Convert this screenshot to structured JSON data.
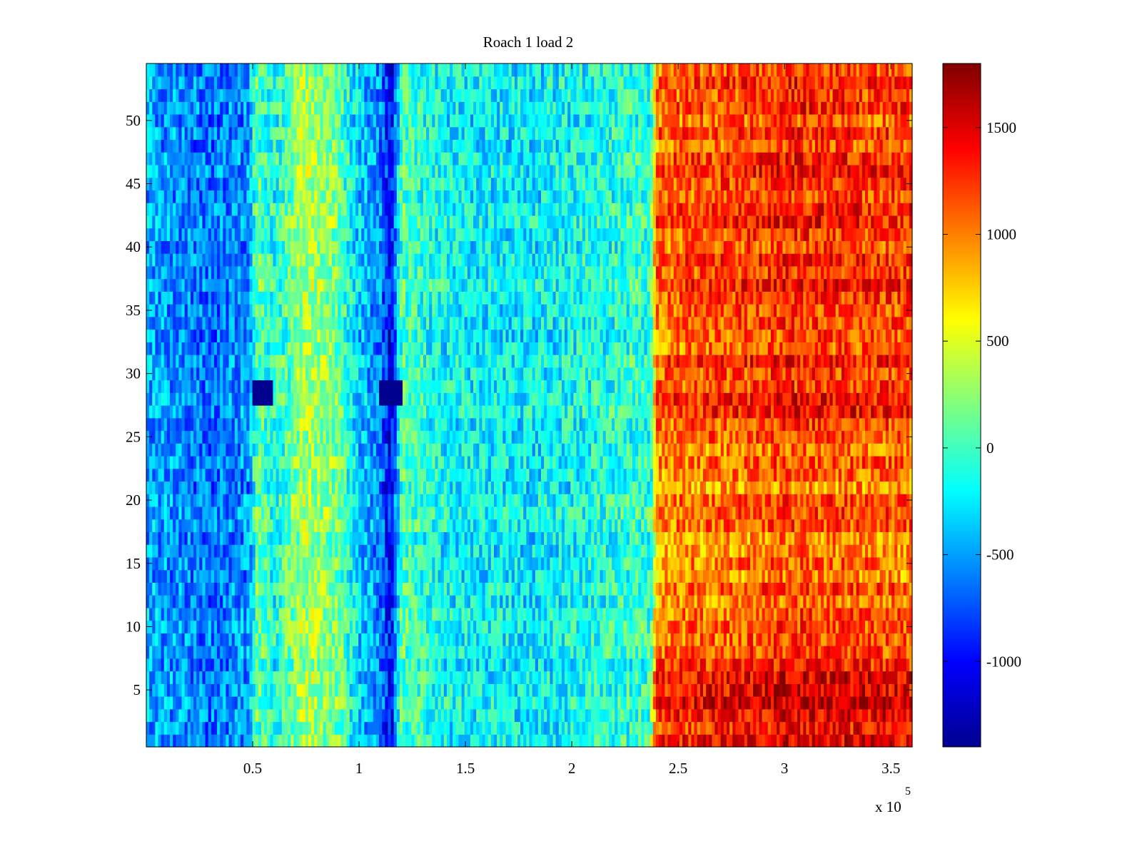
{
  "chart_data": {
    "type": "heatmap",
    "title": "Roach 1 load 2",
    "xlabel": "",
    "ylabel": "",
    "x_multiplier_label": {
      "base": "x 10",
      "exponent": "5"
    },
    "xlim": [
      0,
      3.6
    ],
    "ylim": [
      0.5,
      54.5
    ],
    "x_ticks": [
      0.5,
      1,
      1.5,
      2,
      2.5,
      3,
      3.5
    ],
    "x_tick_labels": [
      "0.5",
      "1",
      "1.5",
      "2",
      "2.5",
      "3",
      "3.5"
    ],
    "y_ticks": [
      5,
      10,
      15,
      20,
      25,
      30,
      35,
      40,
      45,
      50
    ],
    "y_tick_labels": [
      "5",
      "10",
      "15",
      "20",
      "25",
      "30",
      "35",
      "40",
      "45",
      "50"
    ],
    "rows": 54,
    "colormap": "jet",
    "colorbar": {
      "clim": [
        -1400,
        1800
      ],
      "ticks": [
        -1000,
        -500,
        0,
        500,
        1000,
        1500
      ],
      "tick_labels": [
        "-1000",
        "-500",
        "0",
        "500",
        "1000",
        "1500"
      ]
    },
    "column_profile": {
      "note": "approximate mean value along x (in 10^5 units)",
      "x": [
        0.0,
        0.3,
        0.48,
        0.52,
        0.6,
        0.75,
        0.9,
        1.0,
        1.1,
        1.15,
        1.2,
        1.4,
        1.8,
        2.3,
        2.37,
        2.4,
        2.8,
        3.0,
        3.3,
        3.6
      ],
      "values": [
        -450,
        -650,
        -550,
        100,
        -150,
        350,
        150,
        -350,
        -600,
        -1050,
        50,
        -200,
        -250,
        -50,
        -50,
        1100,
        1200,
        1300,
        1250,
        1200
      ]
    },
    "dark_spots": [
      {
        "x_range": [
          0.5,
          0.6
        ],
        "y_range": [
          27.5,
          29.5
        ],
        "value": -1350
      },
      {
        "x_range": [
          1.1,
          1.2
        ],
        "y_range": [
          27.5,
          29.5
        ],
        "value": -1350
      }
    ]
  }
}
